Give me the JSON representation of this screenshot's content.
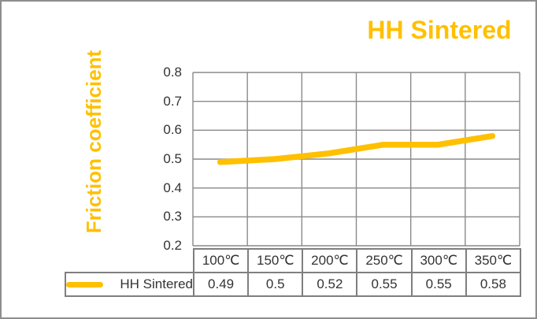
{
  "colors": {
    "accent": "#FFC000",
    "grid": "#8a8a8a",
    "table_border": "#7f7f7f",
    "text": "#333333",
    "frame_border": "#8e8e8e"
  },
  "chart_data": {
    "type": "line",
    "title": "HH Sintered",
    "ylabel": "Friction coefficient",
    "xlabel": "",
    "categories": [
      "100℃",
      "150℃",
      "200℃",
      "250℃",
      "300℃",
      "350℃"
    ],
    "series": [
      {
        "name": "HH Sintered",
        "values": [
          0.49,
          0.5,
          0.52,
          0.55,
          0.55,
          0.58
        ],
        "color": "#FFC000",
        "display_values": [
          "0.49",
          "0.5",
          "0.52",
          "0.55",
          "0.55",
          "0.58"
        ]
      }
    ],
    "ylim": [
      0.2,
      0.8
    ],
    "ytick_step": 0.1,
    "yticks": [
      "0.8",
      "0.7",
      "0.6",
      "0.5",
      "0.4",
      "0.3",
      "0.2"
    ],
    "grid": true,
    "legend_position": "data-table-left",
    "data_table_shown": true
  }
}
